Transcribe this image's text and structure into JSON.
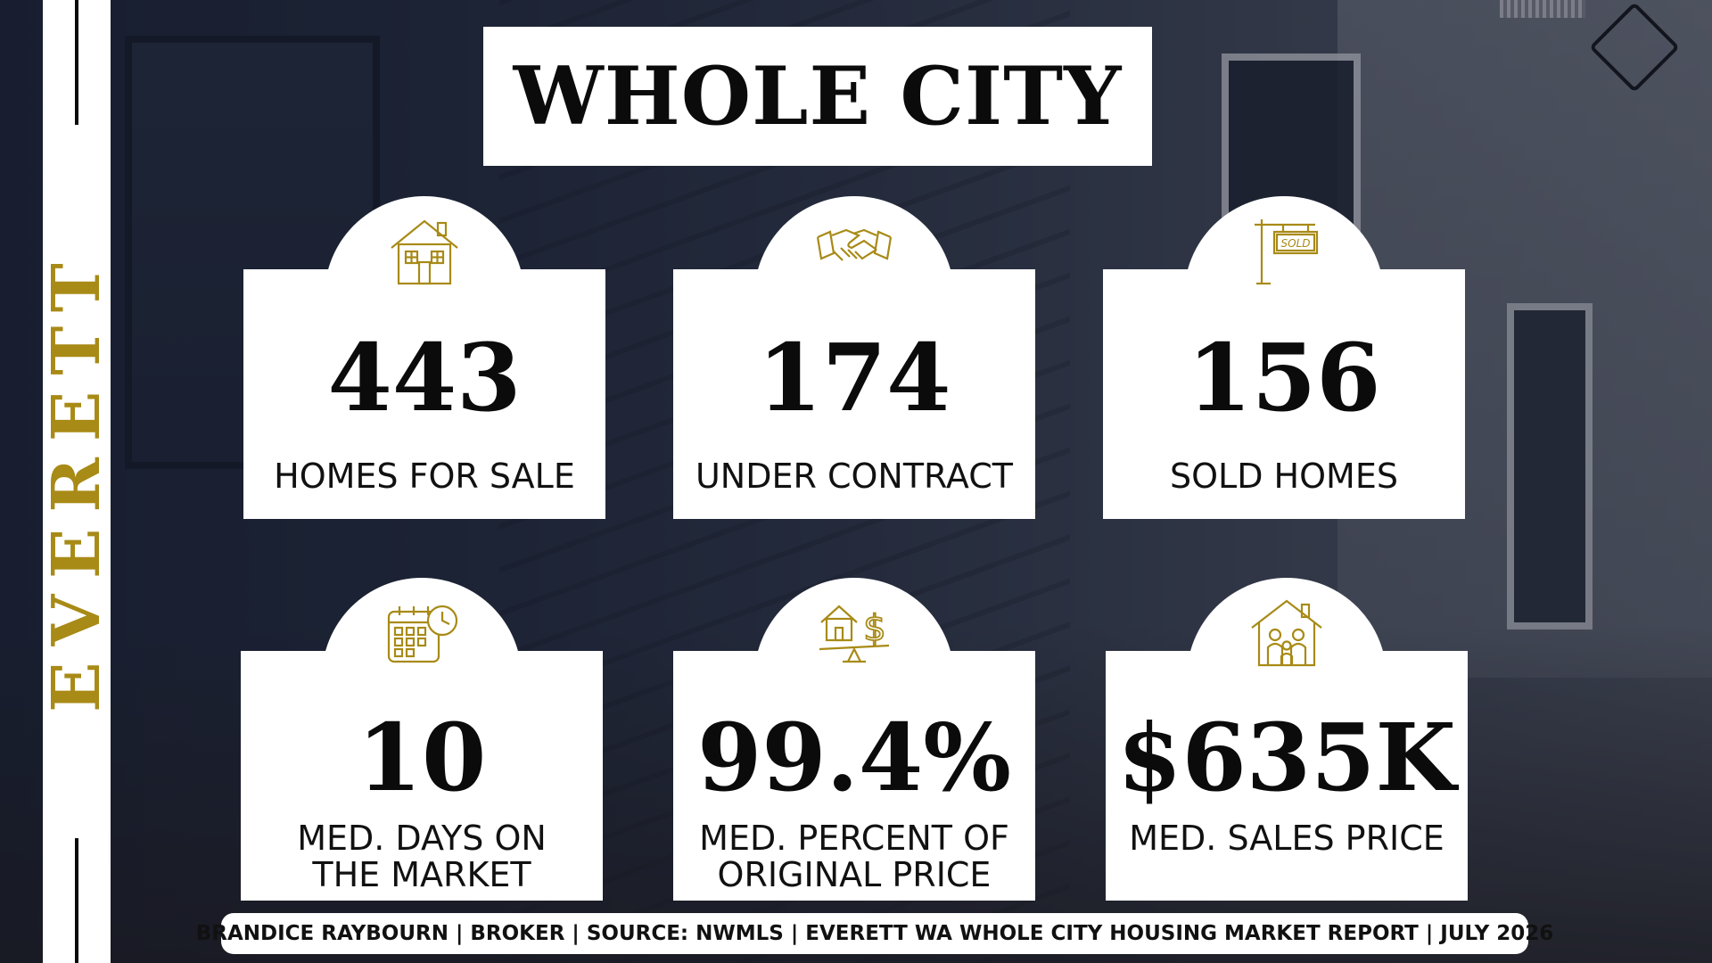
{
  "sidebar": {
    "city": "EVERETT"
  },
  "title": "WHOLE CITY",
  "stats": [
    {
      "value": "443",
      "label_lines": [
        "HOMES FOR SALE"
      ],
      "icon": "house-icon"
    },
    {
      "value": "174",
      "label_lines": [
        "UNDER CONTRACT"
      ],
      "icon": "handshake-icon"
    },
    {
      "value": "156",
      "label_lines": [
        "SOLD HOMES"
      ],
      "icon": "sold-sign-icon"
    },
    {
      "value": "10",
      "label_lines": [
        "MED. DAYS ON",
        "THE MARKET"
      ],
      "icon": "calendar-clock-icon"
    },
    {
      "value": "99.4%",
      "label_lines": [
        "MED. PERCENT OF",
        "ORIGINAL PRICE"
      ],
      "icon": "house-dollar-scale-icon"
    },
    {
      "value": "$635K",
      "label_lines": [
        "MED. SALES PRICE"
      ],
      "icon": "family-house-icon"
    }
  ],
  "footer": "BRANDICE RAYBOURN | BROKER | SOURCE: NWMLS | EVERETT WA WHOLE CITY HOUSING MARKET REPORT | JULY 2026",
  "colors": {
    "accent_gold": "#a88a16",
    "card_bg": "#ffffff",
    "text_dark": "#0b0b0b"
  }
}
